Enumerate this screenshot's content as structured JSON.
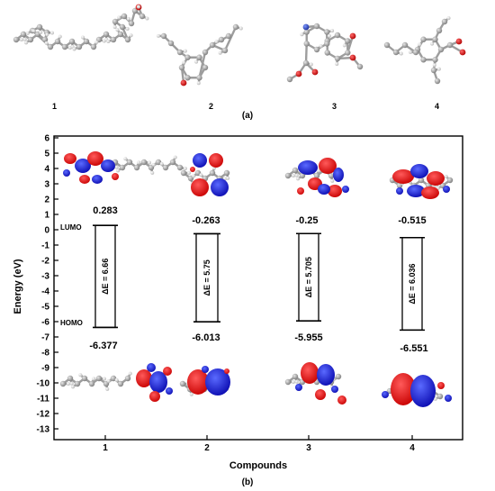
{
  "panel_a": {
    "label": "(a)",
    "molecules": [
      {
        "number": "1"
      },
      {
        "number": "2"
      },
      {
        "number": "3"
      },
      {
        "number": "4"
      }
    ]
  },
  "panel_b": {
    "label": "(b)",
    "levels_label": {
      "lumo": "LUMO",
      "homo": "HOMO"
    },
    "compounds": [
      {
        "name": "1",
        "lumo": "0.283",
        "homo": "-6.377",
        "gap": "ΔE = 6.66",
        "lumo_e": 0.283,
        "homo_e": -6.377
      },
      {
        "name": "2",
        "lumo": "-0.263",
        "homo": "-6.013",
        "gap": "ΔE = 5.75",
        "lumo_e": -0.263,
        "homo_e": -6.013
      },
      {
        "name": "3",
        "lumo": "-0.25",
        "homo": "-5.955",
        "gap": "ΔE = 5.705",
        "lumo_e": -0.25,
        "homo_e": -5.955
      },
      {
        "name": "4",
        "lumo": "-0.515",
        "homo": "-6.551",
        "gap": "ΔE = 6.036",
        "lumo_e": -0.515,
        "homo_e": -6.551
      }
    ]
  },
  "chart_data": {
    "type": "scatter",
    "xlabel": "Compounds",
    "ylabel": "Energy (eV)",
    "ylim": [
      -13.5,
      6
    ],
    "yticks": [
      6,
      5,
      4,
      3,
      2,
      1,
      0,
      -1,
      -2,
      -3,
      -4,
      -5,
      -6,
      -7,
      -8,
      -9,
      -10,
      -11,
      -12,
      -13
    ],
    "categories": [
      "1",
      "2",
      "3",
      "4"
    ],
    "series": [
      {
        "name": "LUMO",
        "values": [
          0.283,
          -0.263,
          -0.25,
          -0.515
        ]
      },
      {
        "name": "HOMO",
        "values": [
          -6.377,
          -6.013,
          -5.955,
          -6.551
        ]
      }
    ],
    "grid": false
  },
  "colors": {
    "orbital_positive": "#e8101a",
    "orbital_negative": "#1a1ae0",
    "atom_carbon": "#9a9a9a",
    "atom_hydrogen": "#d0d0d0",
    "atom_oxygen": "#d01010",
    "atom_nitrogen": "#2040c0"
  }
}
